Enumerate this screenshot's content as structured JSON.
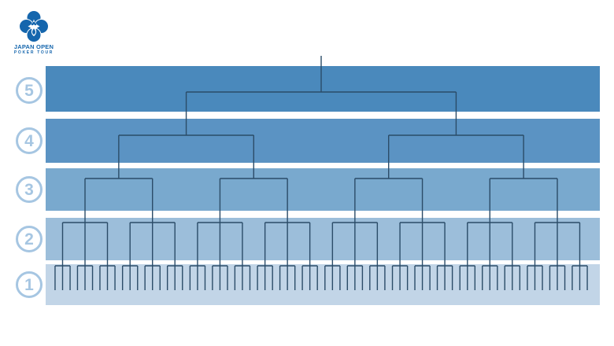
{
  "page": {
    "background_color": "#ffffff",
    "description": "Tournament bracket structure poster"
  },
  "logo": {
    "icon": "clover-spade-logo",
    "title": "JAPAN OPEN",
    "subtitle": "POKER TOUR",
    "brand_color": "#1566ad"
  },
  "bracket": {
    "line_color": "#2b4c68",
    "round_label_color": "#a6c6e2",
    "rounds": [
      {
        "number": "5",
        "band_color": "#4a89bc"
      },
      {
        "number": "4",
        "band_color": "#5b93c3"
      },
      {
        "number": "3",
        "band_color": "#79a9ce"
      },
      {
        "number": "2",
        "band_color": "#9cbeda"
      },
      {
        "number": "1",
        "band_color": "#c2d5e7"
      }
    ],
    "structure": {
      "type": "single-elimination-bracket",
      "levels": 5,
      "final_nodes": 1,
      "semifinal_nodes": 2,
      "quarterfinal_nodes": 4,
      "round2_groups": 8,
      "round1_groups_per_round2_group": 3,
      "ticks_per_round1_group": 3,
      "total_bottom_ticks": 72
    }
  }
}
